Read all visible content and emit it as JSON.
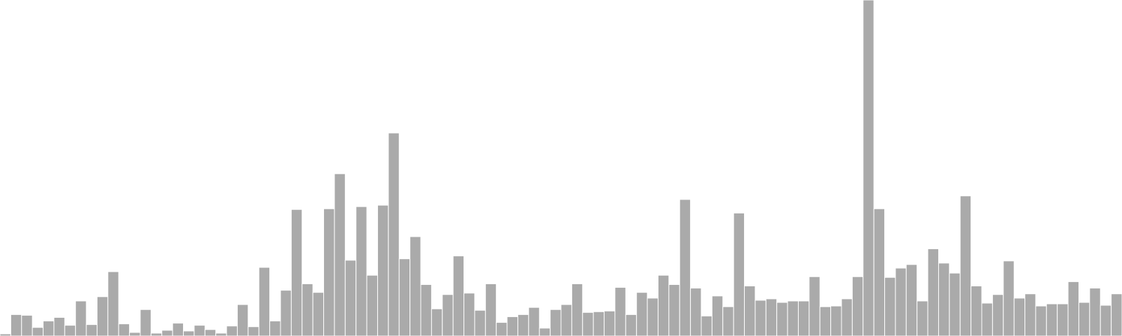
{
  "chart_data": {
    "type": "bar",
    "color": "#aaaaaa",
    "values": [
      3,
      30,
      29,
      12,
      21,
      26,
      15,
      49,
      16,
      55,
      90,
      17,
      5,
      37,
      4,
      8,
      18,
      7,
      15,
      9,
      4,
      14,
      44,
      13,
      96,
      21,
      64,
      177,
      73,
      61,
      178,
      227,
      106,
      181,
      85,
      183,
      284,
      108,
      139,
      72,
      38,
      58,
      112,
      60,
      36,
      73,
      19,
      27,
      30,
      40,
      11,
      37,
      44,
      73,
      33,
      34,
      35,
      68,
      30,
      61,
      53,
      85,
      72,
      191,
      67,
      28,
      56,
      41,
      172,
      70,
      50,
      52,
      47,
      49,
      49,
      83,
      41,
      42,
      52,
      83,
      470,
      178,
      82,
      95,
      100,
      49,
      122,
      102,
      88,
      196,
      70,
      46,
      58,
      105,
      53,
      59,
      42,
      45,
      45,
      76,
      47,
      67,
      43,
      59
    ],
    "ylim": [
      0,
      470
    ]
  }
}
